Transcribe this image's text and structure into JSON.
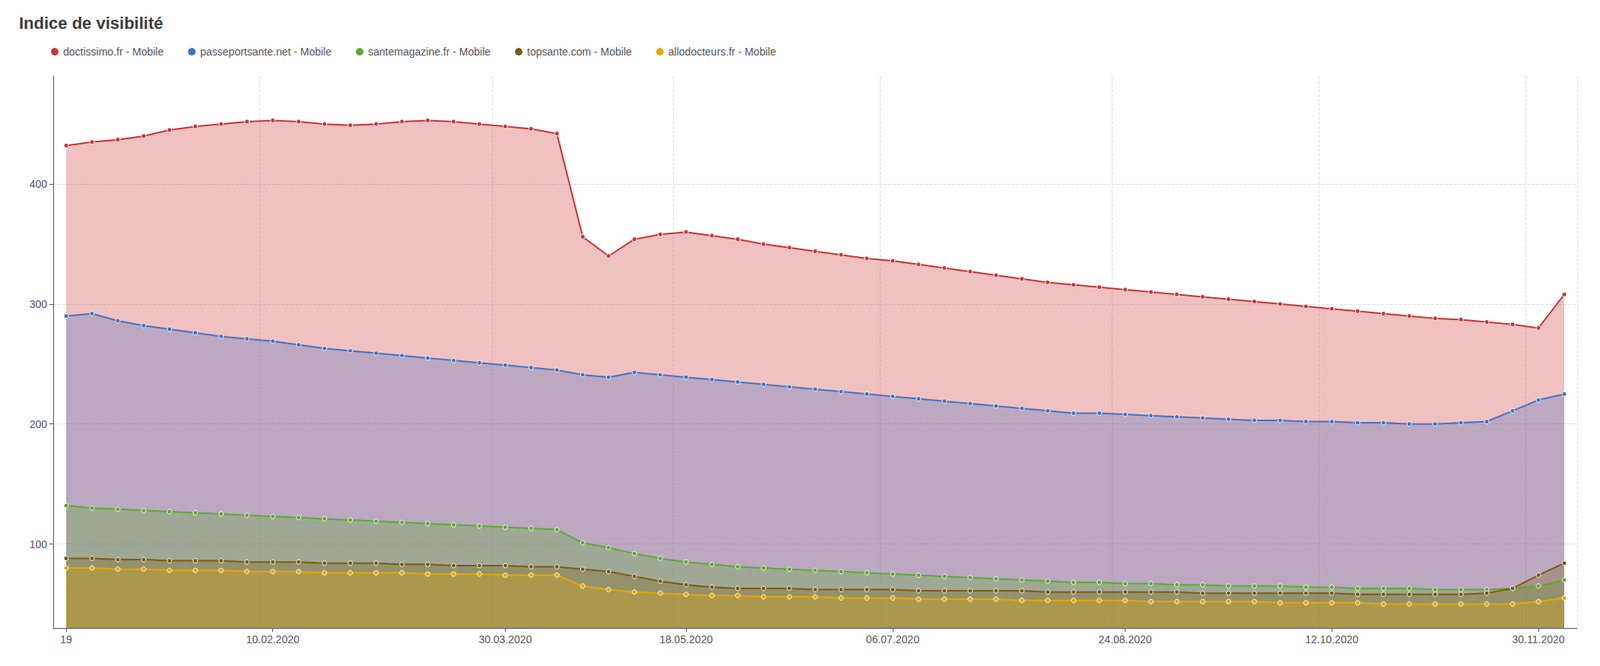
{
  "chart_data": {
    "type": "area",
    "title": "Indice de visibilité",
    "categories": [
      "19",
      null,
      null,
      null,
      null,
      null,
      null,
      null,
      "10.02.2020",
      null,
      null,
      null,
      null,
      null,
      null,
      null,
      null,
      "30.03.2020",
      null,
      null,
      null,
      null,
      null,
      null,
      "18.05.2020",
      null,
      null,
      null,
      null,
      null,
      null,
      null,
      "06.07.2020",
      null,
      null,
      null,
      null,
      null,
      null,
      null,
      null,
      "24.08.2020",
      null,
      null,
      null,
      null,
      null,
      null,
      null,
      "12.10.2020",
      null,
      null,
      null,
      null,
      null,
      null,
      null,
      "30.11.2020",
      null
    ],
    "ylim": [
      30,
      490
    ],
    "yticks": [
      100,
      200,
      300,
      400
    ],
    "grid": true,
    "legend": "upper left",
    "marker": "circle",
    "series": [
      {
        "name": "doctissimo.fr - Mobile",
        "color": "#cc3333",
        "values": [
          432,
          435,
          437,
          440,
          445,
          448,
          450,
          452,
          453,
          452,
          450,
          449,
          450,
          452,
          453,
          452,
          450,
          448,
          446,
          442,
          356,
          340,
          354,
          358,
          360,
          357,
          354,
          350,
          347,
          344,
          341,
          338,
          336,
          333,
          330,
          327,
          324,
          321,
          318,
          316,
          314,
          312,
          310,
          308,
          306,
          304,
          302,
          300,
          298,
          296,
          294,
          292,
          290,
          288,
          287,
          285,
          283,
          280,
          308
        ]
      },
      {
        "name": "passeportsante.net - Mobile",
        "color": "#4472c4",
        "values": [
          290,
          292,
          286,
          282,
          279,
          276,
          273,
          271,
          269,
          266,
          263,
          261,
          259,
          257,
          255,
          253,
          251,
          249,
          247,
          245,
          241,
          239,
          243,
          241,
          239,
          237,
          235,
          233,
          231,
          229,
          227,
          225,
          223,
          221,
          219,
          217,
          215,
          213,
          211,
          209,
          209,
          208,
          207,
          206,
          205,
          204,
          203,
          203,
          202,
          202,
          201,
          201,
          200,
          200,
          201,
          202,
          211,
          220,
          225
        ]
      },
      {
        "name": "santemagazine.fr - Mobile",
        "color": "#5da832",
        "values": [
          132,
          130,
          129,
          128,
          127,
          126,
          125,
          124,
          123,
          122,
          121,
          120,
          119,
          118,
          117,
          116,
          115,
          114,
          113,
          112,
          101,
          97,
          92,
          88,
          85,
          83,
          81,
          80,
          79,
          78,
          77,
          76,
          75,
          74,
          73,
          72,
          71,
          70,
          69,
          68,
          68,
          67,
          67,
          66,
          66,
          65,
          65,
          65,
          64,
          64,
          63,
          63,
          63,
          62,
          62,
          62,
          63,
          65,
          70
        ]
      },
      {
        "name": "topsante.com - Mobile",
        "color": "#7a5c10",
        "values": [
          88,
          88,
          87,
          87,
          86,
          86,
          86,
          85,
          85,
          85,
          84,
          84,
          84,
          83,
          83,
          82,
          82,
          82,
          81,
          81,
          79,
          77,
          73,
          69,
          66,
          64,
          63,
          63,
          63,
          62,
          62,
          62,
          62,
          61,
          61,
          61,
          61,
          61,
          60,
          60,
          60,
          60,
          60,
          60,
          59,
          59,
          59,
          59,
          59,
          59,
          58,
          58,
          58,
          58,
          58,
          59,
          63,
          74,
          84
        ]
      },
      {
        "name": "allodocteurs.fr - Mobile",
        "color": "#e6a800",
        "values": [
          80,
          80,
          79,
          79,
          78,
          78,
          78,
          77,
          77,
          77,
          76,
          76,
          76,
          76,
          75,
          75,
          75,
          74,
          74,
          74,
          65,
          62,
          60,
          59,
          58,
          57,
          57,
          56,
          56,
          56,
          55,
          55,
          55,
          54,
          54,
          54,
          54,
          53,
          53,
          53,
          53,
          53,
          52,
          52,
          52,
          52,
          52,
          51,
          51,
          51,
          51,
          50,
          50,
          50,
          50,
          50,
          50,
          52,
          55
        ]
      }
    ]
  }
}
